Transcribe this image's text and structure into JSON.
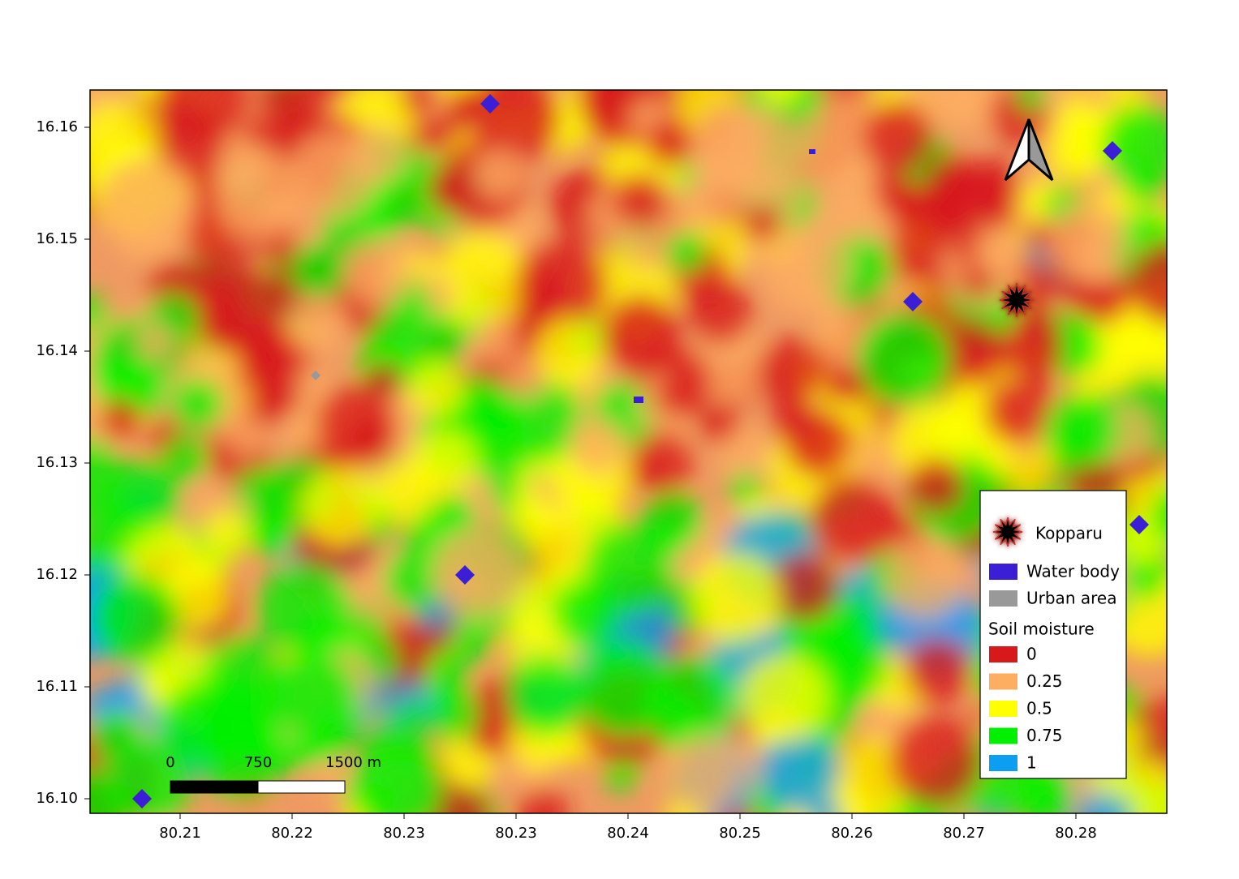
{
  "map": {
    "x_axis": {
      "ticks": [
        "80.21",
        "80.22",
        "80.23",
        "80.23",
        "80.24",
        "80.25",
        "80.26",
        "80.27",
        "80.28"
      ]
    },
    "y_axis": {
      "ticks": [
        "16.16",
        "16.15",
        "16.14",
        "16.13",
        "16.12",
        "16.11",
        "16.10"
      ]
    },
    "scale_bar": {
      "labels": [
        "0",
        "750",
        "1500 m"
      ]
    },
    "legend": {
      "items": [
        {
          "label": "Kopparu"
        },
        {
          "label": "Water body",
          "color": "#3a1fd6"
        },
        {
          "label": "Urban area",
          "color": "#999999"
        }
      ],
      "title": "Soil moisture",
      "classes": [
        {
          "label": "0",
          "color": "#d7191c"
        },
        {
          "label": "0.25",
          "color": "#fdae61"
        },
        {
          "label": "0.5",
          "color": "#ffff00"
        },
        {
          "label": "0.75",
          "color": "#00f000"
        },
        {
          "label": "1",
          "color": "#0c9ef0"
        }
      ]
    }
  }
}
